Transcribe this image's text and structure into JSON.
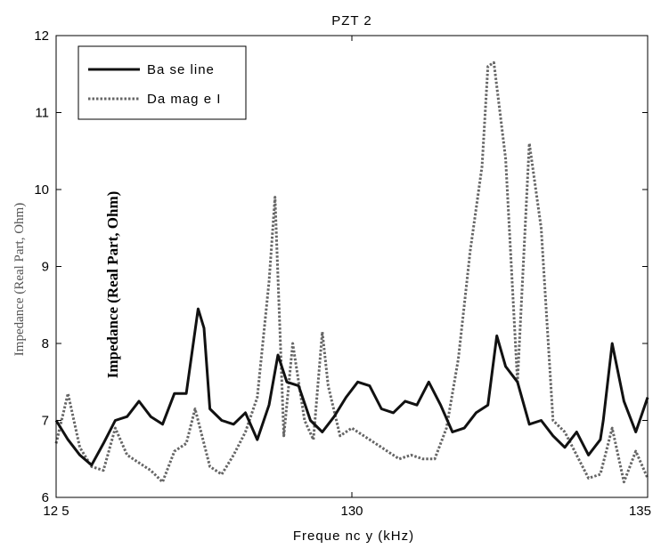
{
  "chart_data": {
    "type": "line",
    "title": "PZT 2",
    "xlabel": "Freque nc y (kHz)",
    "ylabel": "Impedance (Real Part, Ohm)",
    "overlay_label": "Impedance (Real Part, Ohm)",
    "xlim": [
      125,
      135
    ],
    "ylim": [
      6,
      12
    ],
    "x_ticks": [
      125,
      130,
      135
    ],
    "x_tick_labels": [
      "12 5",
      "130",
      "135"
    ],
    "y_ticks": [
      6,
      7,
      8,
      9,
      10,
      11,
      12
    ],
    "y_tick_labels": [
      "6",
      "7",
      "8",
      "9",
      "10",
      "11",
      "12"
    ],
    "grid": false,
    "legend_position": "top-left",
    "series": [
      {
        "name": "Ba se line",
        "style": "solid",
        "color": "#111111",
        "x": [
          125.0,
          125.2,
          125.4,
          125.6,
          125.8,
          126.0,
          126.2,
          126.4,
          126.6,
          126.8,
          127.0,
          127.2,
          127.4,
          127.5,
          127.6,
          127.8,
          128.0,
          128.2,
          128.4,
          128.6,
          128.75,
          128.9,
          129.1,
          129.3,
          129.5,
          129.7,
          129.9,
          130.1,
          130.3,
          130.5,
          130.7,
          130.9,
          131.1,
          131.3,
          131.5,
          131.7,
          131.9,
          132.1,
          132.3,
          132.45,
          132.6,
          132.8,
          133.0,
          133.2,
          133.4,
          133.6,
          133.8,
          134.0,
          134.2,
          134.25,
          134.4,
          134.6,
          134.8,
          135.0
        ],
        "y": [
          7.0,
          6.75,
          6.55,
          6.42,
          6.7,
          7.0,
          7.05,
          7.25,
          7.05,
          6.95,
          7.35,
          7.35,
          8.45,
          8.2,
          7.15,
          7.0,
          6.95,
          7.1,
          6.75,
          7.2,
          7.85,
          7.5,
          7.45,
          7.0,
          6.85,
          7.05,
          7.3,
          7.5,
          7.45,
          7.15,
          7.1,
          7.25,
          7.2,
          7.5,
          7.2,
          6.85,
          6.9,
          7.1,
          7.2,
          8.1,
          7.7,
          7.5,
          6.95,
          7.0,
          6.8,
          6.65,
          6.85,
          6.55,
          6.75,
          7.0,
          8.0,
          7.25,
          6.85,
          7.3
        ]
      },
      {
        "name": "Da mag e I",
        "style": "dotted",
        "color": "#666666",
        "x": [
          125.0,
          125.2,
          125.4,
          125.6,
          125.8,
          126.0,
          126.2,
          126.4,
          126.6,
          126.8,
          127.0,
          127.2,
          127.35,
          127.6,
          127.8,
          128.0,
          128.2,
          128.4,
          128.6,
          128.7,
          128.85,
          129.0,
          129.2,
          129.35,
          129.5,
          129.6,
          129.8,
          130.0,
          130.2,
          130.4,
          130.6,
          130.8,
          131.0,
          131.2,
          131.4,
          131.6,
          131.8,
          131.9,
          132.0,
          132.2,
          132.3,
          132.4,
          132.6,
          132.8,
          133.0,
          133.2,
          133.4,
          133.6,
          133.8,
          134.0,
          134.2,
          134.4,
          134.6,
          134.8,
          135.0
        ],
        "y": [
          6.7,
          7.35,
          6.65,
          6.4,
          6.35,
          6.9,
          6.55,
          6.45,
          6.35,
          6.2,
          6.6,
          6.7,
          7.15,
          6.4,
          6.3,
          6.55,
          6.85,
          7.3,
          8.8,
          9.9,
          6.8,
          8.0,
          7.0,
          6.75,
          8.15,
          7.45,
          6.8,
          6.9,
          6.8,
          6.7,
          6.6,
          6.5,
          6.55,
          6.5,
          6.5,
          6.9,
          7.8,
          8.5,
          9.2,
          10.3,
          11.6,
          11.65,
          10.4,
          7.5,
          10.6,
          9.5,
          7.0,
          6.85,
          6.55,
          6.25,
          6.3,
          6.9,
          6.2,
          6.6,
          6.25
        ]
      }
    ]
  }
}
